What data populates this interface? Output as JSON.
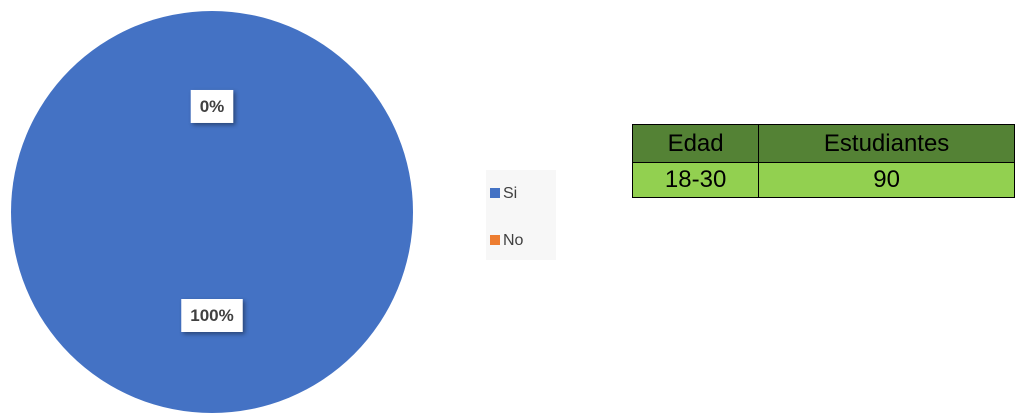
{
  "chart_data": {
    "type": "pie",
    "categories": [
      "Si",
      "No"
    ],
    "values": [
      100,
      0
    ],
    "value_labels": [
      "100%",
      "0%"
    ],
    "colors": [
      "#4472c4",
      "#ed7d31"
    ],
    "legend": "right"
  },
  "table": {
    "header": [
      "Edad",
      "Estudiantes"
    ],
    "rows": [
      [
        "18-30",
        90
      ]
    ]
  }
}
